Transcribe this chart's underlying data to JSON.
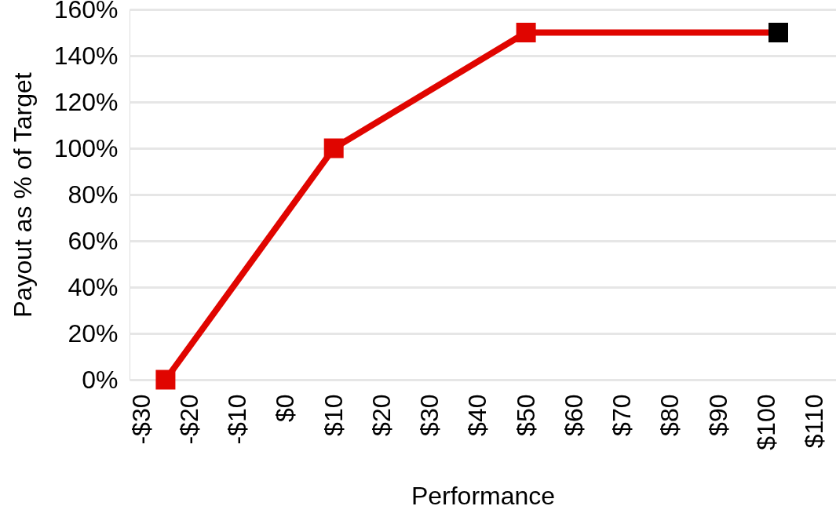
{
  "chart_data": {
    "type": "line",
    "xlabel": "Performance",
    "ylabel": "Payout as % of Target",
    "x": [
      -25,
      10,
      50,
      102.5
    ],
    "series": [
      {
        "color": "#e00500",
        "colors": [
          "#e00500",
          "#e00500",
          "#e00500",
          "#000000"
        ],
        "values": [
          0,
          100,
          150,
          150
        ]
      }
    ],
    "xlim": [
      -32.5,
      114.5
    ],
    "xticks": [
      {
        "value": -30,
        "label": "-$30"
      },
      {
        "value": -20,
        "label": "-$20"
      },
      {
        "value": -10,
        "label": "-$10"
      },
      {
        "value": 0,
        "label": "$0"
      },
      {
        "value": 10,
        "label": "$10"
      },
      {
        "value": 20,
        "label": "$20"
      },
      {
        "value": 30,
        "label": "$30"
      },
      {
        "value": 40,
        "label": "$40"
      },
      {
        "value": 50,
        "label": "$50"
      },
      {
        "value": 60,
        "label": "$60"
      },
      {
        "value": 70,
        "label": "$70"
      },
      {
        "value": 80,
        "label": "$80"
      },
      {
        "value": 90,
        "label": "$90"
      },
      {
        "value": 100,
        "label": "$100"
      },
      {
        "value": 110,
        "label": "$110"
      }
    ],
    "ylim": [
      0,
      160
    ],
    "yticks": [
      {
        "value": 0,
        "label": "0%"
      },
      {
        "value": 20,
        "label": "20%"
      },
      {
        "value": 40,
        "label": "40%"
      },
      {
        "value": 60,
        "label": "60%"
      },
      {
        "value": 80,
        "label": "80%"
      },
      {
        "value": 100,
        "label": "100%"
      },
      {
        "value": 120,
        "label": "120%"
      },
      {
        "value": 140,
        "label": "140%"
      },
      {
        "value": 160,
        "label": "160%"
      }
    ],
    "grid": "y",
    "marker": "square",
    "line_style": "solid"
  }
}
